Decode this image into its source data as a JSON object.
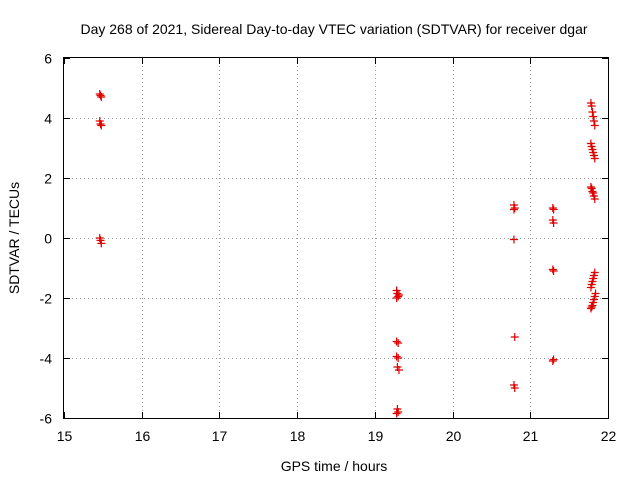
{
  "chart_data": {
    "type": "scatter",
    "title": "Day 268 of 2021, Sidereal Day-to-day VTEC variation (SDTVAR) for receiver dgar",
    "xlabel": "GPS time / hours",
    "ylabel": "SDTVAR / TECUs",
    "xlim": [
      15,
      22
    ],
    "ylim": [
      -6,
      6
    ],
    "xticks": [
      "15",
      "16",
      "17",
      "18",
      "19",
      "20",
      "21",
      "22"
    ],
    "yticks": [
      "-6",
      "-4",
      "-2",
      "0",
      "2",
      "4",
      "6"
    ],
    "grid": true,
    "marker": "plus",
    "color": "#e00000",
    "series": [
      {
        "name": "SDTVAR",
        "points": [
          [
            15.46,
            4.8
          ],
          [
            15.47,
            4.75
          ],
          [
            15.48,
            4.7
          ],
          [
            15.46,
            3.9
          ],
          [
            15.47,
            3.8
          ],
          [
            15.48,
            3.75
          ],
          [
            15.46,
            0.0
          ],
          [
            15.47,
            -0.08
          ],
          [
            15.48,
            -0.18
          ],
          [
            19.28,
            -1.75
          ],
          [
            19.29,
            -1.85
          ],
          [
            19.3,
            -1.95
          ],
          [
            19.31,
            -1.9
          ],
          [
            19.28,
            -2.0
          ],
          [
            19.28,
            -3.45
          ],
          [
            19.3,
            -3.5
          ],
          [
            19.28,
            -3.95
          ],
          [
            19.3,
            -4.0
          ],
          [
            19.29,
            -4.3
          ],
          [
            19.31,
            -4.4
          ],
          [
            19.29,
            -5.7
          ],
          [
            19.3,
            -5.8
          ],
          [
            19.28,
            -5.85
          ],
          [
            20.79,
            1.1
          ],
          [
            20.8,
            1.0
          ],
          [
            20.79,
            0.95
          ],
          [
            20.79,
            -0.05
          ],
          [
            20.8,
            -3.3
          ],
          [
            20.79,
            -4.9
          ],
          [
            20.8,
            -5.0
          ],
          [
            21.29,
            1.0
          ],
          [
            21.3,
            0.95
          ],
          [
            21.29,
            0.6
          ],
          [
            21.3,
            0.5
          ],
          [
            21.29,
            -1.05
          ],
          [
            21.3,
            -1.1
          ],
          [
            21.3,
            -4.05
          ],
          [
            21.29,
            -4.1
          ],
          [
            21.78,
            4.5
          ],
          [
            21.79,
            4.4
          ],
          [
            21.8,
            4.2
          ],
          [
            21.81,
            4.05
          ],
          [
            21.82,
            3.9
          ],
          [
            21.83,
            3.75
          ],
          [
            21.78,
            3.15
          ],
          [
            21.79,
            3.05
          ],
          [
            21.8,
            2.95
          ],
          [
            21.81,
            2.85
          ],
          [
            21.82,
            2.75
          ],
          [
            21.83,
            2.65
          ],
          [
            21.78,
            1.7
          ],
          [
            21.79,
            1.65
          ],
          [
            21.8,
            1.55
          ],
          [
            21.81,
            1.5
          ],
          [
            21.82,
            1.4
          ],
          [
            21.83,
            1.3
          ],
          [
            21.83,
            -1.15
          ],
          [
            21.82,
            -1.25
          ],
          [
            21.81,
            -1.35
          ],
          [
            21.8,
            -1.45
          ],
          [
            21.79,
            -1.55
          ],
          [
            21.78,
            -1.65
          ],
          [
            21.84,
            -1.85
          ],
          [
            21.83,
            -1.95
          ],
          [
            21.82,
            -2.05
          ],
          [
            21.81,
            -2.15
          ],
          [
            21.8,
            -2.25
          ],
          [
            21.79,
            -2.3
          ],
          [
            21.78,
            -2.35
          ]
        ]
      }
    ]
  }
}
